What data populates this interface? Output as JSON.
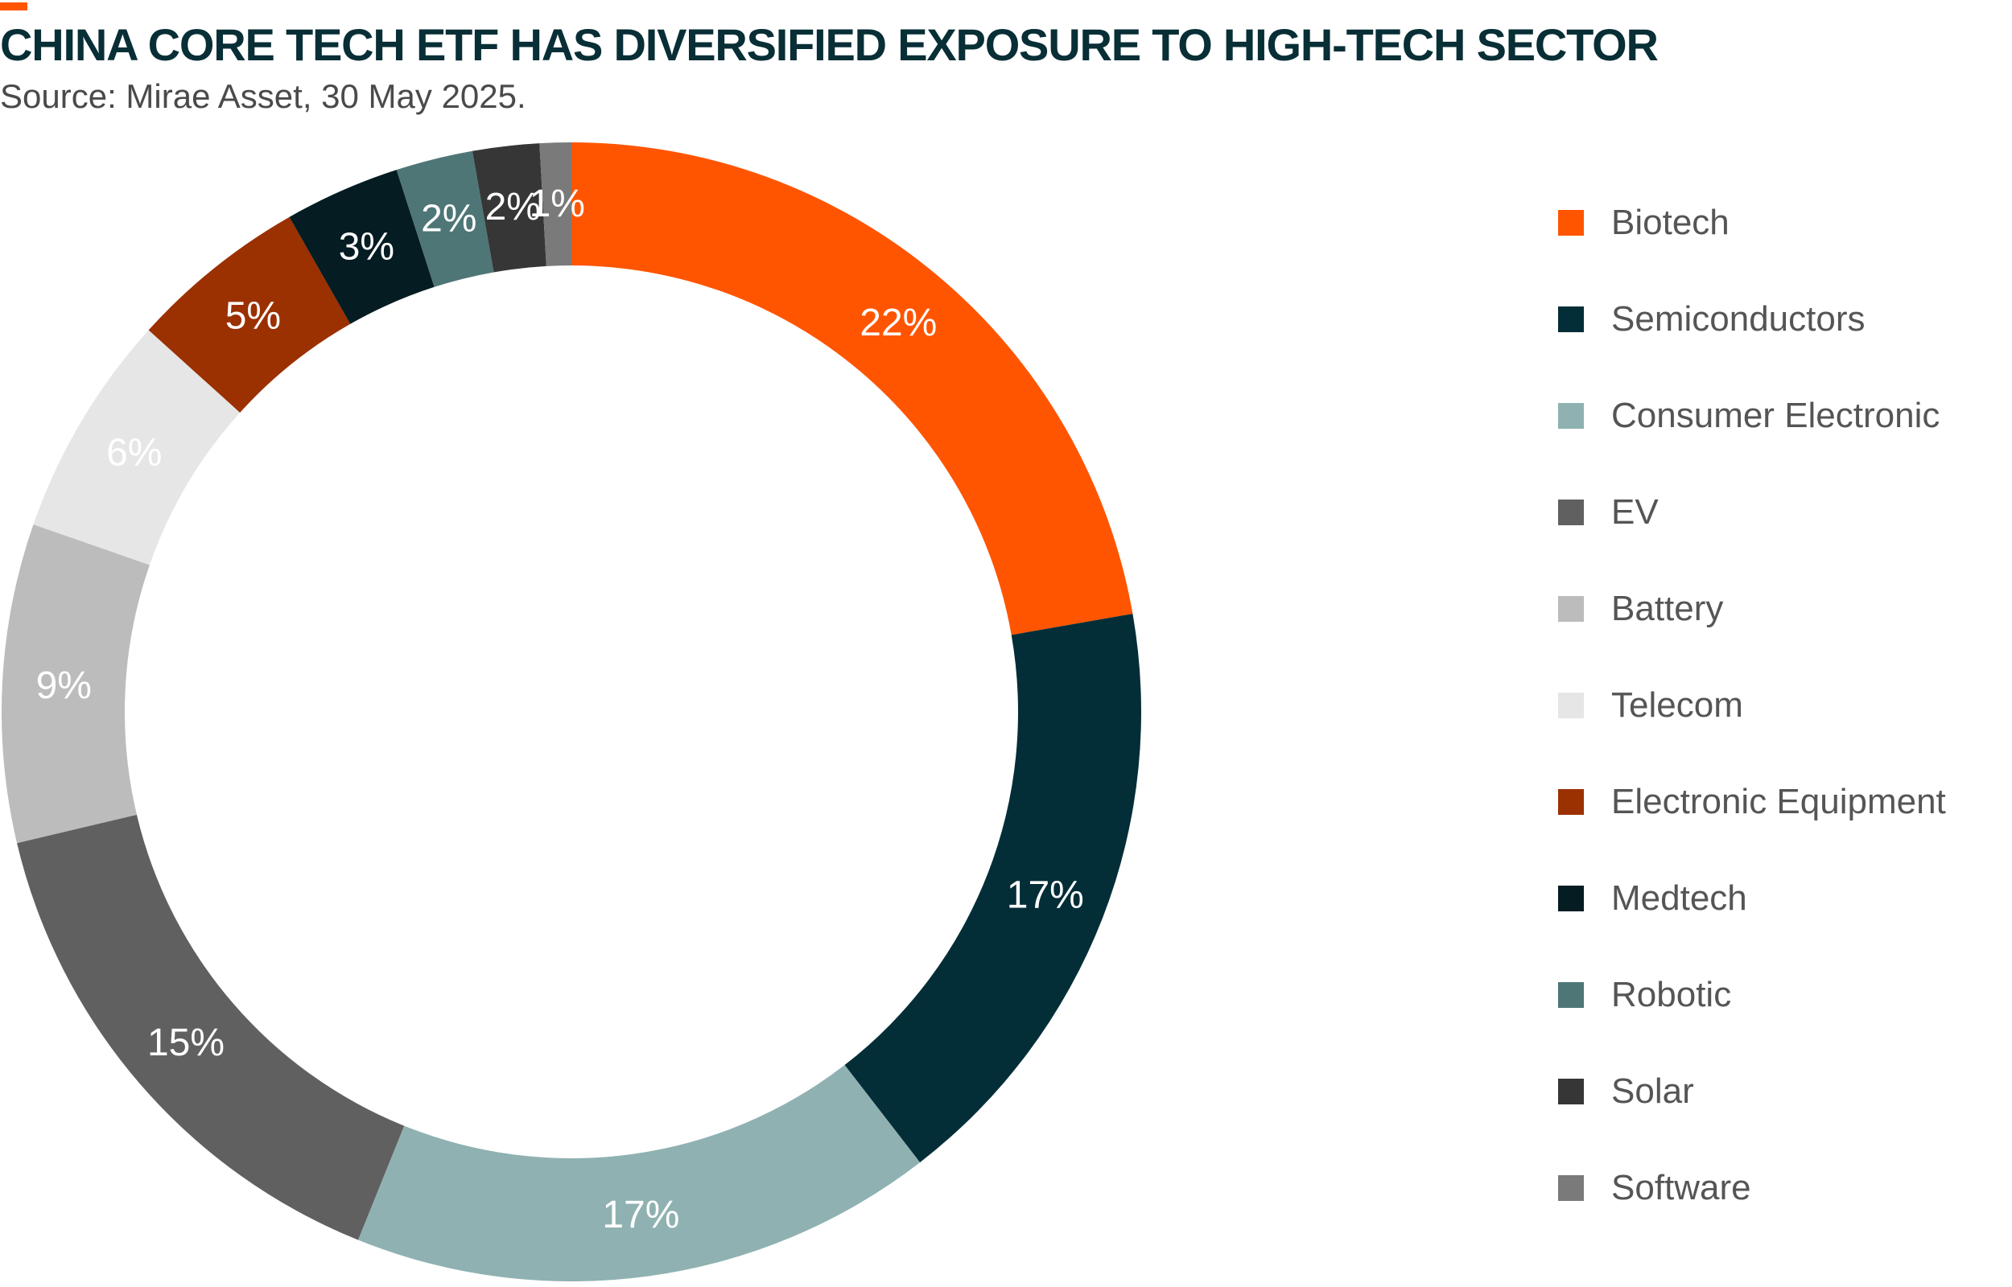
{
  "header": {
    "title": "CHINA CORE TECH ETF HAS DIVERSIFIED EXPOSURE TO HIGH-TECH SECTOR",
    "subtitle": "Source: Mirae Asset, 30 May 2025."
  },
  "chart_data": {
    "type": "pie",
    "variant": "donut",
    "title": "CHINA CORE TECH ETF HAS DIVERSIFIED EXPOSURE TO HIGH-TECH SECTOR",
    "subtitle": "Source: Mirae Asset, 30 May 2025.",
    "legend_position": "right",
    "slices": [
      {
        "name": "Biotech",
        "label": "22%",
        "value": 22.4,
        "color": "#ff5500",
        "label_color": "#ffffff"
      },
      {
        "name": "Semiconductors",
        "label": "17%",
        "value": 17.4,
        "color": "#032e38",
        "label_color": "#ffffff"
      },
      {
        "name": "Consumer Electronic",
        "label": "17%",
        "value": 16.7,
        "color": "#8fb1b1",
        "label_color": "#ffffff"
      },
      {
        "name": "EV",
        "label": "15%",
        "value": 15.3,
        "color": "#606060",
        "label_color": "#ffffff"
      },
      {
        "name": "Battery",
        "label": "9%",
        "value": 9.1,
        "color": "#bcbcbc",
        "label_color": "#ffffff"
      },
      {
        "name": "Telecom",
        "label": "6%",
        "value": 6.4,
        "color": "#e6e6e6",
        "label_color": "#ffffff"
      },
      {
        "name": "Electronic Equipment",
        "label": "5%",
        "value": 5.1,
        "color": "#9b3000",
        "label_color": "#ffffff"
      },
      {
        "name": "Medtech",
        "label": "3%",
        "value": 3.3,
        "color": "#041c22",
        "label_color": "#ffffff"
      },
      {
        "name": "Robotic",
        "label": "2%",
        "value": 2.2,
        "color": "#4e7676",
        "label_color": "#ffffff"
      },
      {
        "name": "Solar",
        "label": "2%",
        "value": 1.9,
        "color": "#363636",
        "label_color": "#ffffff"
      },
      {
        "name": "Software",
        "label": "1%",
        "value": 0.9,
        "color": "#7a7a7a",
        "label_color": "#ffffff"
      }
    ]
  }
}
